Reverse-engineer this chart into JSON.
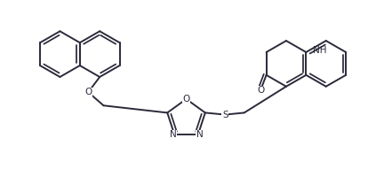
{
  "bg_color": "#ffffff",
  "line_color": "#2a2a3a",
  "line_width": 1.4,
  "figsize": [
    4.32,
    2.17
  ],
  "dpi": 100,
  "xlim": [
    0,
    10
  ],
  "ylim": [
    0,
    5
  ]
}
